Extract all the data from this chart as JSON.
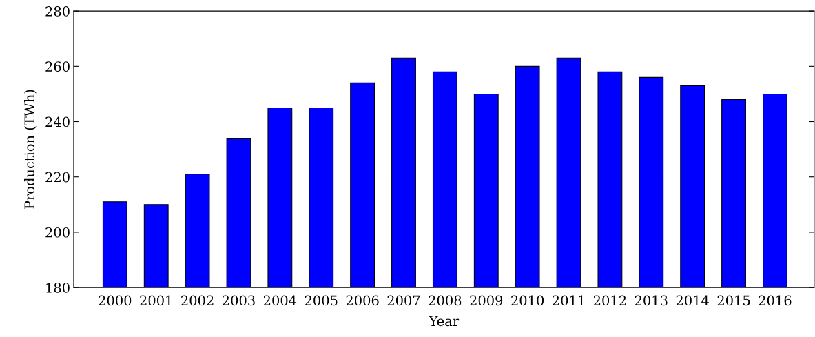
{
  "chart_data": {
    "type": "bar",
    "xlabel": "Year",
    "ylabel": "Production (TWh)",
    "categories": [
      "2000",
      "2001",
      "2002",
      "2003",
      "2004",
      "2005",
      "2006",
      "2007",
      "2008",
      "2009",
      "2010",
      "2011",
      "2012",
      "2013",
      "2014",
      "2015",
      "2016"
    ],
    "values": [
      211,
      210,
      221,
      234,
      245,
      245,
      254,
      263,
      258,
      250,
      260,
      263,
      258,
      256,
      253,
      248,
      250
    ],
    "color": "#0000ff",
    "ylim": [
      180,
      280
    ],
    "yticks": [
      180,
      200,
      220,
      240,
      260,
      280
    ],
    "grid": false,
    "legend": false
  }
}
